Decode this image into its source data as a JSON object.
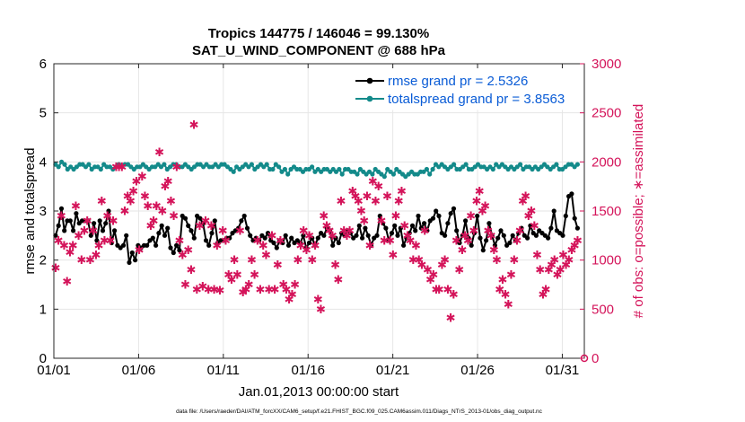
{
  "chart_data": {
    "type": "line",
    "title": "Tropics 144775 / 146046 = 99.130%",
    "subtitle": "SAT_U_WIND_COMPONENT @ 688 hPa",
    "xlabel": "Jan.01,2013 00:00:00 start",
    "ylabel_left": "rmse and totalspread",
    "ylabel_right": "# of obs: o=possible; ∗=assimilated",
    "footnote": "data file: /Users/raeder/DAI/ATM_forcXX/CAM6_setup/f.e21.FHIST_BGC.f09_025.CAM6assim.011/Diags_NTrS_2013-01/obs_diag_output.nc",
    "xlim": [
      0,
      31.3
    ],
    "ylim_left": [
      0,
      6
    ],
    "ylim_right": [
      0,
      3000
    ],
    "x_ticks": [
      0,
      5,
      10,
      15,
      20,
      25,
      30
    ],
    "x_tick_labels": [
      "01/01",
      "01/06",
      "01/11",
      "01/16",
      "01/21",
      "01/26",
      "01/31"
    ],
    "y_left_ticks": [
      "0",
      "1",
      "2",
      "3",
      "4",
      "5",
      "6"
    ],
    "y_right_ticks": [
      "0",
      "500",
      "1000",
      "1500",
      "2000",
      "2500",
      "3000"
    ],
    "legend_position": "top-right",
    "colors": {
      "rmse": "#000000",
      "spread": "#138a8a",
      "obs": "#d4145a",
      "legend_text": "#0a5cd6"
    },
    "series": [
      {
        "name": "rmse grand pr = 2.5326",
        "axis": "left",
        "values": [
          2.5,
          2.7,
          3.05,
          2.6,
          2.8,
          2.8,
          2.6,
          2.95,
          2.75,
          2.8,
          2.8,
          2.8,
          2.5,
          2.75,
          2.4,
          2.8,
          2.6,
          2.75,
          3.0,
          2.35,
          2.6,
          2.3,
          2.25,
          2.3,
          2.5,
          1.95,
          2.15,
          2.0,
          2.3,
          2.25,
          2.3,
          2.3,
          2.4,
          2.45,
          2.3,
          2.55,
          2.7,
          2.5,
          2.65,
          2.25,
          2.15,
          2.3,
          2.2,
          2.9,
          2.85,
          2.7,
          2.6,
          2.45,
          2.9,
          2.85,
          2.75,
          2.4,
          2.3,
          2.55,
          2.8,
          2.35,
          2.4,
          2.4,
          2.45,
          2.45,
          2.55,
          2.6,
          2.65,
          2.8,
          2.9,
          2.65,
          2.5,
          2.4,
          2.45,
          2.4,
          2.5,
          2.45,
          2.55,
          2.4,
          2.35,
          2.25,
          2.4,
          2.35,
          2.5,
          2.3,
          2.45,
          2.35,
          2.4,
          2.35,
          2.5,
          2.25,
          2.35,
          2.45,
          2.3,
          2.45,
          2.55,
          2.5,
          2.65,
          2.6,
          2.3,
          2.45,
          2.35,
          2.55,
          2.5,
          2.6,
          2.55,
          2.45,
          2.5,
          2.7,
          2.45,
          2.65,
          2.5,
          2.3,
          2.45,
          2.5,
          2.9,
          2.75,
          2.65,
          2.4,
          2.55,
          2.7,
          2.5,
          2.65,
          2.3,
          2.45,
          2.55,
          2.7,
          2.6,
          2.9,
          2.65,
          2.75,
          2.6,
          2.8,
          2.85,
          3.0,
          2.9,
          2.55,
          2.5,
          2.75,
          2.95,
          3.05,
          2.6,
          2.35,
          2.5,
          2.8,
          2.45,
          2.3,
          2.55,
          2.9,
          2.45,
          2.2,
          2.4,
          2.75,
          2.5,
          2.3,
          2.45,
          2.6,
          2.5,
          2.3,
          2.35,
          2.5,
          2.4,
          2.55,
          2.65,
          2.5,
          2.45,
          2.7,
          2.55,
          2.5,
          2.6,
          2.55,
          2.5,
          2.45,
          2.65,
          3.0,
          2.6,
          2.55,
          2.5,
          2.9,
          3.3,
          3.35,
          2.85,
          2.65
        ],
        "marker": "circle"
      },
      {
        "name": "totalspread grand pr = 3.8563",
        "axis": "left",
        "values": [
          3.95,
          3.9,
          4.0,
          3.95,
          3.85,
          3.9,
          3.85,
          3.9,
          3.95,
          3.95,
          3.9,
          3.95,
          3.85,
          3.9,
          3.9,
          3.85,
          3.95,
          3.9,
          3.9,
          3.85,
          3.9,
          3.95,
          3.9,
          3.95,
          3.95,
          3.9,
          3.85,
          3.9,
          3.9,
          3.95,
          3.9,
          3.85,
          3.9,
          3.9,
          3.95,
          3.9,
          3.95,
          3.85,
          3.9,
          3.95,
          3.95,
          3.9,
          3.9,
          3.95,
          3.9,
          3.85,
          3.9,
          3.95,
          3.95,
          3.9,
          3.95,
          3.9,
          3.9,
          3.95,
          3.9,
          3.95,
          3.95,
          3.9,
          3.85,
          3.8,
          3.9,
          3.85,
          3.9,
          3.95,
          3.9,
          3.95,
          3.85,
          3.9,
          3.95,
          3.9,
          3.95,
          3.85,
          3.85,
          3.95,
          3.9,
          3.8,
          3.85,
          3.75,
          3.85,
          3.9,
          3.85,
          3.85,
          3.8,
          3.85,
          3.85,
          3.9,
          3.8,
          3.85,
          3.8,
          3.85,
          3.85,
          3.8,
          3.85,
          3.8,
          3.85,
          3.75,
          3.85,
          3.85,
          3.8,
          3.8,
          3.75,
          3.85,
          3.8,
          3.75,
          3.8,
          3.75,
          3.85,
          3.8,
          3.75,
          3.7,
          3.85,
          3.8,
          3.75,
          3.85,
          3.8,
          3.75,
          3.7,
          3.75,
          3.8,
          3.75,
          3.75,
          3.8,
          3.8,
          3.85,
          3.75,
          3.85,
          3.95,
          3.9,
          3.95,
          3.9,
          3.85,
          3.9,
          3.95,
          3.85,
          3.85,
          3.9,
          3.95,
          3.85,
          3.85,
          3.9,
          3.95,
          3.9,
          3.9,
          3.85,
          3.9,
          3.85,
          3.95,
          3.9,
          3.95,
          3.9,
          3.85,
          3.9,
          3.85,
          3.9,
          3.95,
          3.85,
          3.9,
          3.9,
          3.85,
          3.9,
          3.85,
          3.9,
          3.95,
          3.9,
          3.85,
          3.9,
          3.95,
          3.85,
          3.85,
          3.9,
          3.95,
          3.95,
          3.9,
          3.95
        ],
        "marker": "circle"
      },
      {
        "name": "# of obs possible",
        "axis": "right",
        "values": [
          920,
          1200,
          1450,
          1150,
          780,
          1080,
          1150,
          1550,
          1250,
          1000,
          1300,
          1400,
          1000,
          1300,
          1050,
          1150,
          1600,
          1200,
          1450,
          1200,
          1400,
          1950,
          1950,
          1950,
          1500,
          1650,
          1600,
          1700,
          1800,
          1100,
          1850,
          1650,
          1550,
          1350,
          1400,
          1550,
          2100,
          1500,
          1750,
          1800,
          1600,
          1450,
          1950,
          1200,
          1050,
          750,
          1100,
          900,
          2380,
          700,
          1350,
          730,
          1400,
          700,
          1350,
          700,
          1150,
          690,
          1300,
          1200,
          850,
          800,
          1000,
          850,
          1300,
          670,
          700,
          750,
          1000,
          850,
          1200,
          700,
          1150,
          1050,
          700,
          1250,
          700,
          950,
          1200,
          750,
          700,
          600,
          650,
          750,
          1000,
          1150,
          1300,
          1100,
          1250,
          1000,
          1150,
          600,
          500,
          1450,
          1350,
          1300,
          1250,
          950,
          800,
          1600,
          1300,
          1250,
          1300,
          1700,
          1650,
          1600,
          1500,
          1400,
          1650,
          1150,
          1800,
          1600,
          1750,
          1400,
          1200,
          1650,
          1200,
          1050,
          1450,
          1600,
          1700,
          1350,
          1250,
          1200,
          1000,
          1150,
          1000,
          950,
          1300,
          900,
          800,
          850,
          700,
          700,
          950,
          1000,
          700,
          410,
          650,
          1200,
          900,
          1100,
          1250,
          1200,
          1450,
          1300,
          1600,
          1700,
          1500,
          1550,
          1300,
          1250,
          1100,
          1000,
          700,
          800,
          650,
          550,
          850,
          1000,
          1200,
          1300,
          1600,
          1650,
          1450,
          1500,
          1350,
          1050,
          900,
          650,
          700,
          900,
          950,
          1000,
          850,
          900,
          1050,
          950,
          1000,
          1100,
          1150,
          1200
        ],
        "marker": "star"
      }
    ]
  }
}
